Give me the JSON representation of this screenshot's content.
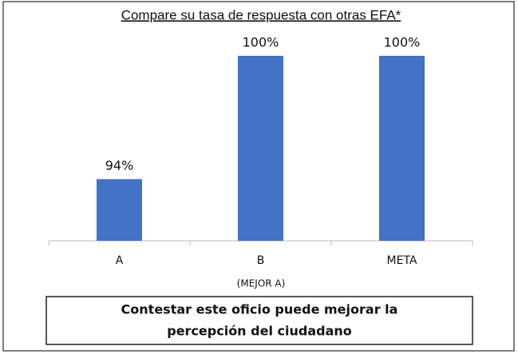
{
  "chart_data": {
    "type": "bar",
    "title": "Compare su tasa de respuesta con otras EFA*",
    "categories": [
      "A",
      "B",
      "META"
    ],
    "values": [
      94,
      100,
      100
    ],
    "value_labels": [
      "94%",
      "100%",
      "100%"
    ],
    "color": "#4472c4",
    "ylim": [
      91,
      100
    ],
    "annotations": [
      "(MEJOR A)"
    ],
    "footer": [
      "Contestar este oficio puede mejorar la",
      "percepción del ciudadano"
    ]
  }
}
